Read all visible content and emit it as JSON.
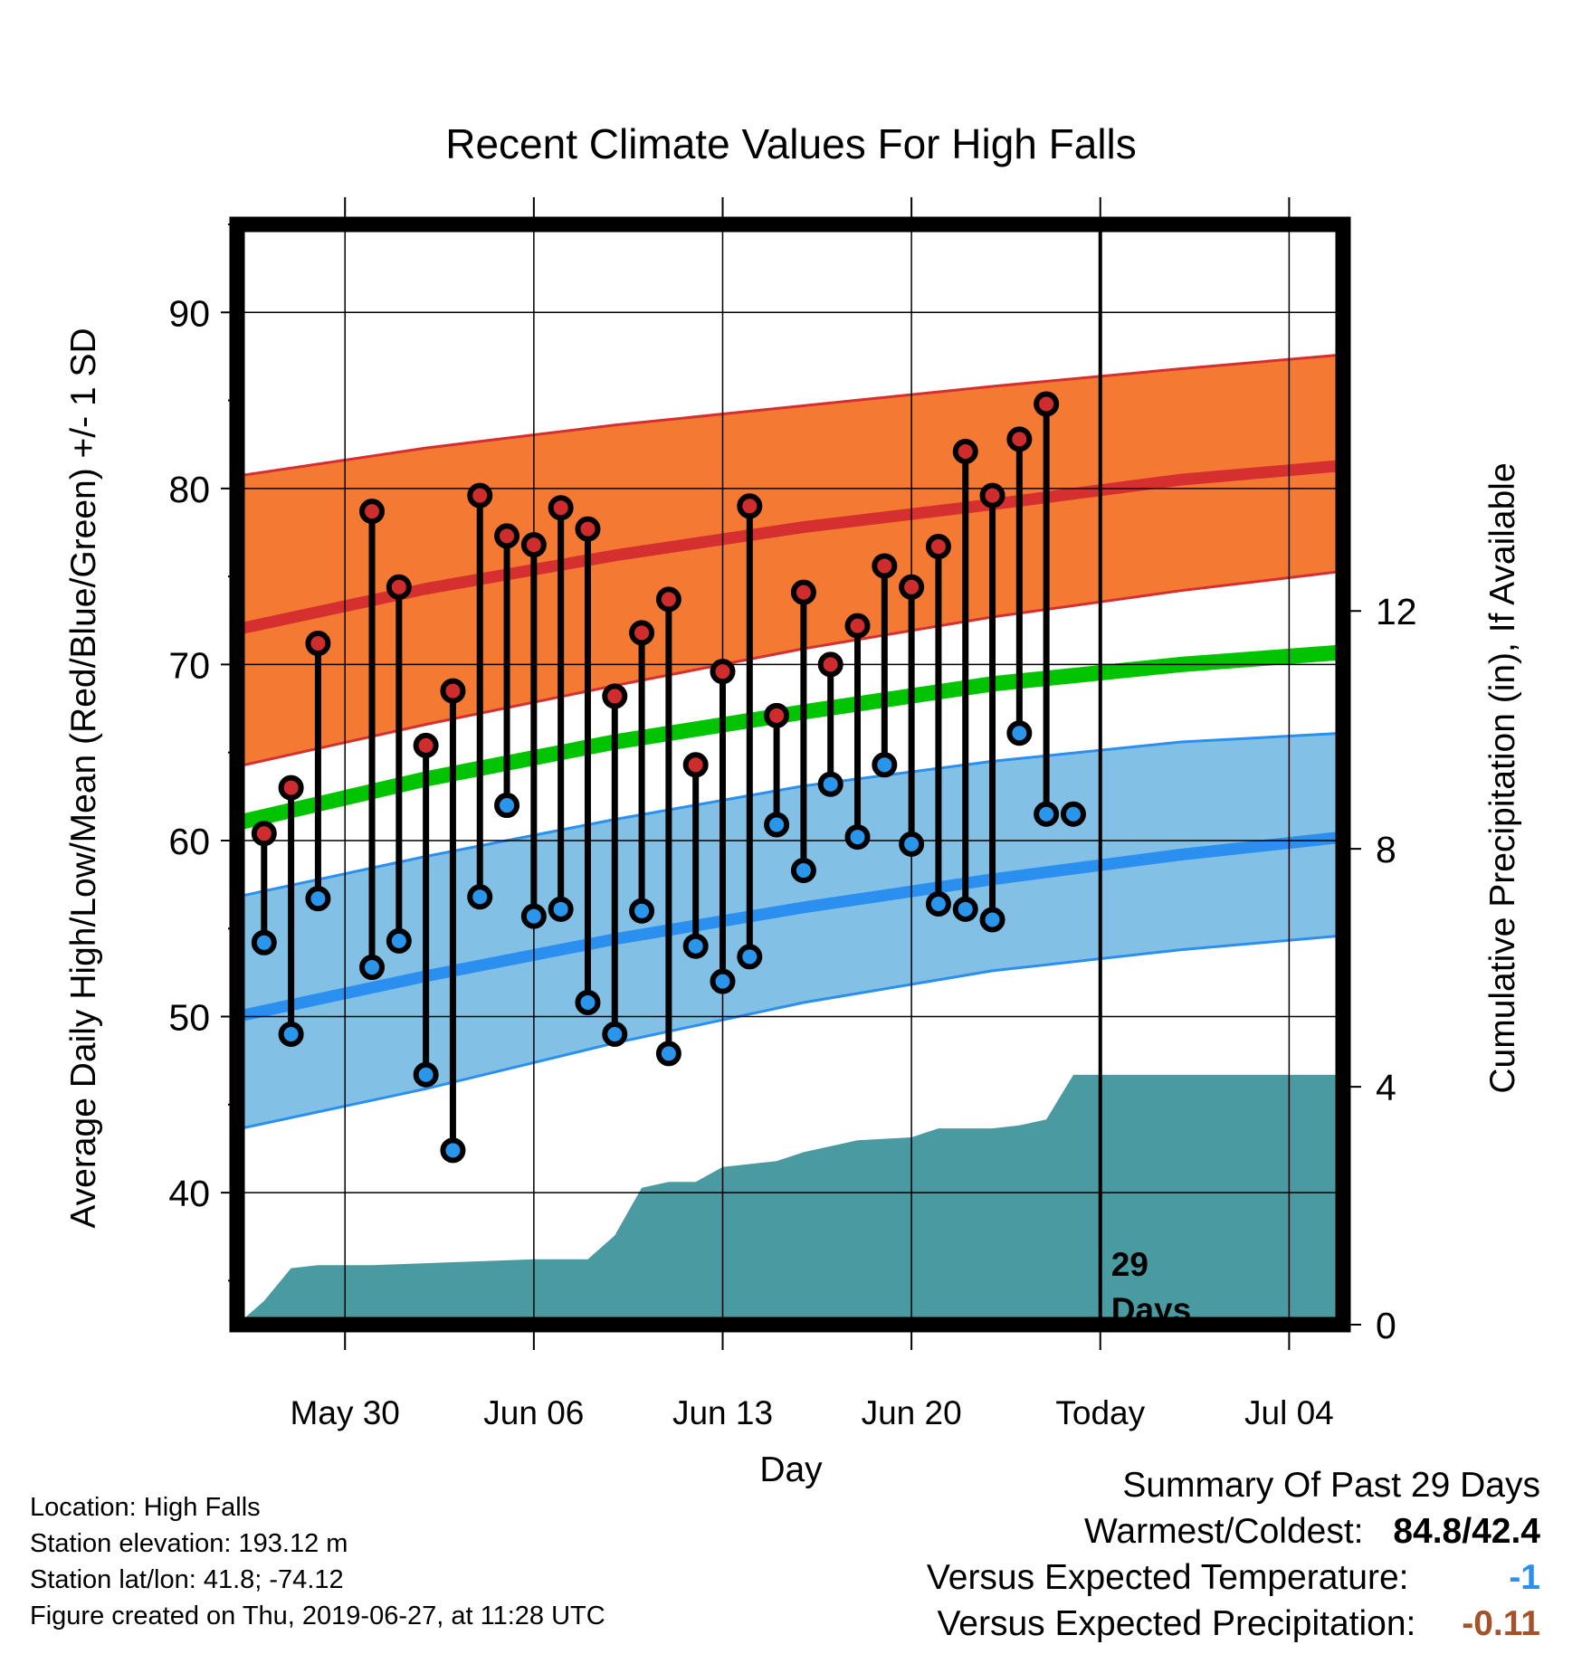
{
  "chart_data": {
    "type": "line",
    "title": "Recent Climate Values For High Falls",
    "xlabel": "Day",
    "ylabel": "Average Daily High/Low/Mean (Red/Blue/Green) +/- 1 SD",
    "y2label": "Cumulative Precipitation (in), If Available",
    "x_range": [
      "2019-05-26",
      "2019-07-06"
    ],
    "ylim": [
      32.5,
      95
    ],
    "y2lim": [
      0,
      18.5
    ],
    "yticks": [
      40,
      50,
      60,
      70,
      80,
      90
    ],
    "y2ticks": [
      0,
      4,
      8,
      12
    ],
    "xticks": [
      {
        "date": "2019-05-30",
        "label": "May 30"
      },
      {
        "date": "2019-06-06",
        "label": "Jun 06"
      },
      {
        "date": "2019-06-13",
        "label": "Jun 13"
      },
      {
        "date": "2019-06-20",
        "label": "Jun 20"
      },
      {
        "date": "2019-06-27",
        "label": "Today"
      },
      {
        "date": "2019-07-04",
        "label": "Jul 04"
      }
    ],
    "today": "2019-06-27",
    "today_label_lines": [
      "29",
      "Days"
    ],
    "grid": true,
    "normal_high": {
      "dates": [
        "2019-05-26",
        "2019-06-02",
        "2019-06-09",
        "2019-06-16",
        "2019-06-23",
        "2019-06-30",
        "2019-07-06"
      ],
      "mean": [
        72.0,
        74.3,
        76.2,
        77.8,
        79.1,
        80.5,
        81.3
      ],
      "upper": [
        80.7,
        82.3,
        83.6,
        84.7,
        85.8,
        86.8,
        87.6
      ],
      "lower": [
        64.2,
        66.6,
        68.8,
        70.9,
        72.7,
        74.2,
        75.3
      ]
    },
    "normal_mean": {
      "dates": [
        "2019-05-26",
        "2019-06-02",
        "2019-06-09",
        "2019-06-16",
        "2019-06-23",
        "2019-06-30",
        "2019-07-06"
      ],
      "values": [
        61.0,
        63.5,
        65.6,
        67.3,
        68.9,
        70.0,
        70.7
      ]
    },
    "normal_low": {
      "dates": [
        "2019-05-26",
        "2019-06-02",
        "2019-06-09",
        "2019-06-16",
        "2019-06-23",
        "2019-06-30",
        "2019-07-06"
      ],
      "mean": [
        50.0,
        52.3,
        54.4,
        56.2,
        57.8,
        59.2,
        60.2
      ],
      "upper": [
        56.8,
        59.1,
        61.2,
        63.1,
        64.5,
        65.6,
        66.1
      ],
      "lower": [
        43.6,
        45.9,
        48.5,
        50.8,
        52.6,
        53.8,
        54.6
      ]
    },
    "series": [
      {
        "name": "High",
        "dates": [
          "2019-05-27",
          "2019-05-28",
          "2019-05-29",
          "2019-05-31",
          "2019-06-01",
          "2019-06-02",
          "2019-06-03",
          "2019-06-04",
          "2019-06-05",
          "2019-06-06",
          "2019-06-07",
          "2019-06-08",
          "2019-06-09",
          "2019-06-10",
          "2019-06-11",
          "2019-06-12",
          "2019-06-13",
          "2019-06-14",
          "2019-06-15",
          "2019-06-16",
          "2019-06-17",
          "2019-06-18",
          "2019-06-19",
          "2019-06-20",
          "2019-06-21",
          "2019-06-22",
          "2019-06-23",
          "2019-06-24",
          "2019-06-25",
          "2019-06-26"
        ],
        "values": [
          60.4,
          63.0,
          71.2,
          78.7,
          74.4,
          65.4,
          68.5,
          79.6,
          77.3,
          76.8,
          78.9,
          77.7,
          68.2,
          71.8,
          73.7,
          64.3,
          69.6,
          79.0,
          67.1,
          74.1,
          70.0,
          72.2,
          75.6,
          74.4,
          76.7,
          82.1,
          79.6,
          82.8,
          84.8,
          61.5
        ]
      },
      {
        "name": "Low",
        "dates": [
          "2019-05-27",
          "2019-05-28",
          "2019-05-29",
          "2019-05-31",
          "2019-06-01",
          "2019-06-02",
          "2019-06-03",
          "2019-06-04",
          "2019-06-05",
          "2019-06-06",
          "2019-06-07",
          "2019-06-08",
          "2019-06-09",
          "2019-06-10",
          "2019-06-11",
          "2019-06-12",
          "2019-06-13",
          "2019-06-14",
          "2019-06-15",
          "2019-06-16",
          "2019-06-17",
          "2019-06-18",
          "2019-06-19",
          "2019-06-20",
          "2019-06-21",
          "2019-06-22",
          "2019-06-23",
          "2019-06-24",
          "2019-06-25",
          "2019-06-26"
        ],
        "values": [
          54.2,
          49.0,
          56.7,
          52.8,
          54.3,
          46.7,
          42.4,
          56.8,
          62.0,
          55.7,
          56.1,
          50.8,
          49.0,
          56.0,
          47.9,
          54.0,
          52.0,
          53.4,
          60.9,
          58.3,
          63.2,
          60.2,
          64.3,
          59.8,
          56.4,
          56.1,
          55.5,
          66.1,
          61.5,
          null
        ]
      }
    ],
    "precip_cumulative": {
      "dates": [
        "2019-05-26",
        "2019-05-27",
        "2019-05-28",
        "2019-05-29",
        "2019-05-31",
        "2019-06-03",
        "2019-06-06",
        "2019-06-08",
        "2019-06-09",
        "2019-06-10",
        "2019-06-11",
        "2019-06-12",
        "2019-06-13",
        "2019-06-15",
        "2019-06-16",
        "2019-06-18",
        "2019-06-20",
        "2019-06-21",
        "2019-06-23",
        "2019-06-24",
        "2019-06-25",
        "2019-06-26",
        "2019-06-27",
        "2019-07-06"
      ],
      "values": [
        0.0,
        0.4,
        0.95,
        1.0,
        1.0,
        1.05,
        1.1,
        1.1,
        1.5,
        2.3,
        2.4,
        2.4,
        2.65,
        2.75,
        2.9,
        3.1,
        3.15,
        3.3,
        3.3,
        3.35,
        3.45,
        4.2,
        4.2,
        4.2
      ]
    },
    "colors": {
      "high_band": "#f47a33",
      "high_mean": "#d52f2f",
      "low_band": "#82c0e6",
      "low_mean": "#2a8fef",
      "mean_line": "#00c400",
      "precip": "#4a9aa2",
      "high_marker": "#cf2d2d",
      "low_marker": "#2996ec"
    }
  },
  "footer": {
    "location": "Location: High Falls",
    "elevation": "Station elevation: 193.12 m",
    "latlon": "Station lat/lon: 41.8; -74.12",
    "created": "Figure created on Thu, 2019-06-27, at 11:28 UTC"
  },
  "summary": {
    "title": "Summary Of Past 29 Days",
    "warm_cold_label": "Warmest/Coldest:",
    "warm_cold_value": "84.8/42.4",
    "temp_label": "Versus Expected Temperature:",
    "temp_value": "-1",
    "temp_color": "#2a8fef",
    "precip_label": "Versus Expected Precipitation:",
    "precip_value": "-0.11",
    "precip_color": "#a5522b"
  }
}
